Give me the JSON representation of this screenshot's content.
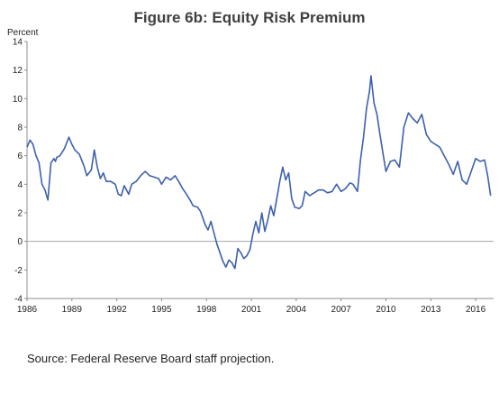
{
  "chart_data": {
    "type": "line",
    "title": "Figure 6b:  Equity Risk Premium",
    "ylabel": "Percent",
    "xlabel": "",
    "xlim": [
      1986,
      2017.2
    ],
    "ylim": [
      -4,
      14
    ],
    "yticks": [
      -4,
      -2,
      0,
      2,
      4,
      6,
      8,
      10,
      12,
      14
    ],
    "xticks": [
      1986,
      1989,
      1992,
      1995,
      1998,
      2001,
      2004,
      2007,
      2010,
      2013,
      2016
    ],
    "grid": false,
    "zero_line": true,
    "line_color": "#3e60ad",
    "series": [
      {
        "x": [
          1986.0,
          1986.2,
          1986.4,
          1986.6,
          1986.8,
          1987.0,
          1987.2,
          1987.4,
          1987.6,
          1987.8,
          1987.9,
          1988.0,
          1988.2,
          1988.5,
          1988.8,
          1989.0,
          1989.2,
          1989.5,
          1989.8,
          1990.0,
          1990.3,
          1990.5,
          1990.7,
          1990.9,
          1991.1,
          1991.3,
          1991.6,
          1991.9,
          1992.1,
          1992.3,
          1992.5,
          1992.8,
          1993.0,
          1993.3,
          1993.6,
          1993.9,
          1994.2,
          1994.5,
          1994.8,
          1995.0,
          1995.3,
          1995.6,
          1995.9,
          1996.2,
          1996.4,
          1996.6,
          1996.9,
          1997.1,
          1997.4,
          1997.6,
          1997.9,
          1998.1,
          1998.3,
          1998.5,
          1998.7,
          1998.9,
          1999.1,
          1999.3,
          1999.5,
          1999.7,
          1999.9,
          2000.1,
          2000.3,
          2000.5,
          2000.7,
          2000.9,
          2001.1,
          2001.3,
          2001.5,
          2001.7,
          2001.9,
          2002.1,
          2002.3,
          2002.5,
          2002.7,
          2002.9,
          2003.1,
          2003.3,
          2003.5,
          2003.7,
          2003.9,
          2004.2,
          2004.4,
          2004.6,
          2004.9,
          2005.2,
          2005.5,
          2005.8,
          2006.1,
          2006.4,
          2006.7,
          2007.0,
          2007.3,
          2007.6,
          2007.8,
          2008.1,
          2008.3,
          2008.5,
          2008.7,
          2008.9,
          2009.0,
          2009.2,
          2009.4,
          2009.6,
          2009.8,
          2010.0,
          2010.3,
          2010.6,
          2010.9,
          2011.2,
          2011.5,
          2011.8,
          2012.1,
          2012.4,
          2012.7,
          2013.0,
          2013.3,
          2013.6,
          2013.9,
          2014.2,
          2014.5,
          2014.8,
          2015.1,
          2015.4,
          2015.7,
          2016.0,
          2016.3,
          2016.6,
          2016.8,
          2017.0
        ],
        "y": [
          6.6,
          7.1,
          6.8,
          6.0,
          5.5,
          4.0,
          3.6,
          2.9,
          5.5,
          5.8,
          5.6,
          5.9,
          6.0,
          6.5,
          7.3,
          6.8,
          6.4,
          6.1,
          5.3,
          4.6,
          5.0,
          6.4,
          5.2,
          4.4,
          4.8,
          4.2,
          4.2,
          4.0,
          3.3,
          3.2,
          3.9,
          3.3,
          4.0,
          4.2,
          4.6,
          4.9,
          4.6,
          4.5,
          4.4,
          4.0,
          4.5,
          4.3,
          4.6,
          4.1,
          3.7,
          3.4,
          2.9,
          2.5,
          2.4,
          2.1,
          1.2,
          0.8,
          1.4,
          0.6,
          -0.2,
          -0.8,
          -1.4,
          -1.8,
          -1.3,
          -1.5,
          -1.9,
          -0.5,
          -0.8,
          -1.2,
          -1.0,
          -0.6,
          0.5,
          1.4,
          0.6,
          2.0,
          0.7,
          1.5,
          2.5,
          1.8,
          3.0,
          4.2,
          5.2,
          4.3,
          4.8,
          3.0,
          2.4,
          2.3,
          2.5,
          3.5,
          3.2,
          3.4,
          3.6,
          3.6,
          3.4,
          3.5,
          4.0,
          3.5,
          3.7,
          4.1,
          4.0,
          3.5,
          5.7,
          7.3,
          9.3,
          10.5,
          11.6,
          9.7,
          8.9,
          7.5,
          6.2,
          4.9,
          5.6,
          5.7,
          5.2,
          8.0,
          9.0,
          8.6,
          8.3,
          8.9,
          7.5,
          7.0,
          6.8,
          6.6,
          6.0,
          5.4,
          4.7,
          5.6,
          4.3,
          4.0,
          4.9,
          5.8,
          5.6,
          5.7,
          4.6,
          3.2
        ]
      }
    ],
    "source": "Source:  Federal Reserve Board staff projection."
  }
}
